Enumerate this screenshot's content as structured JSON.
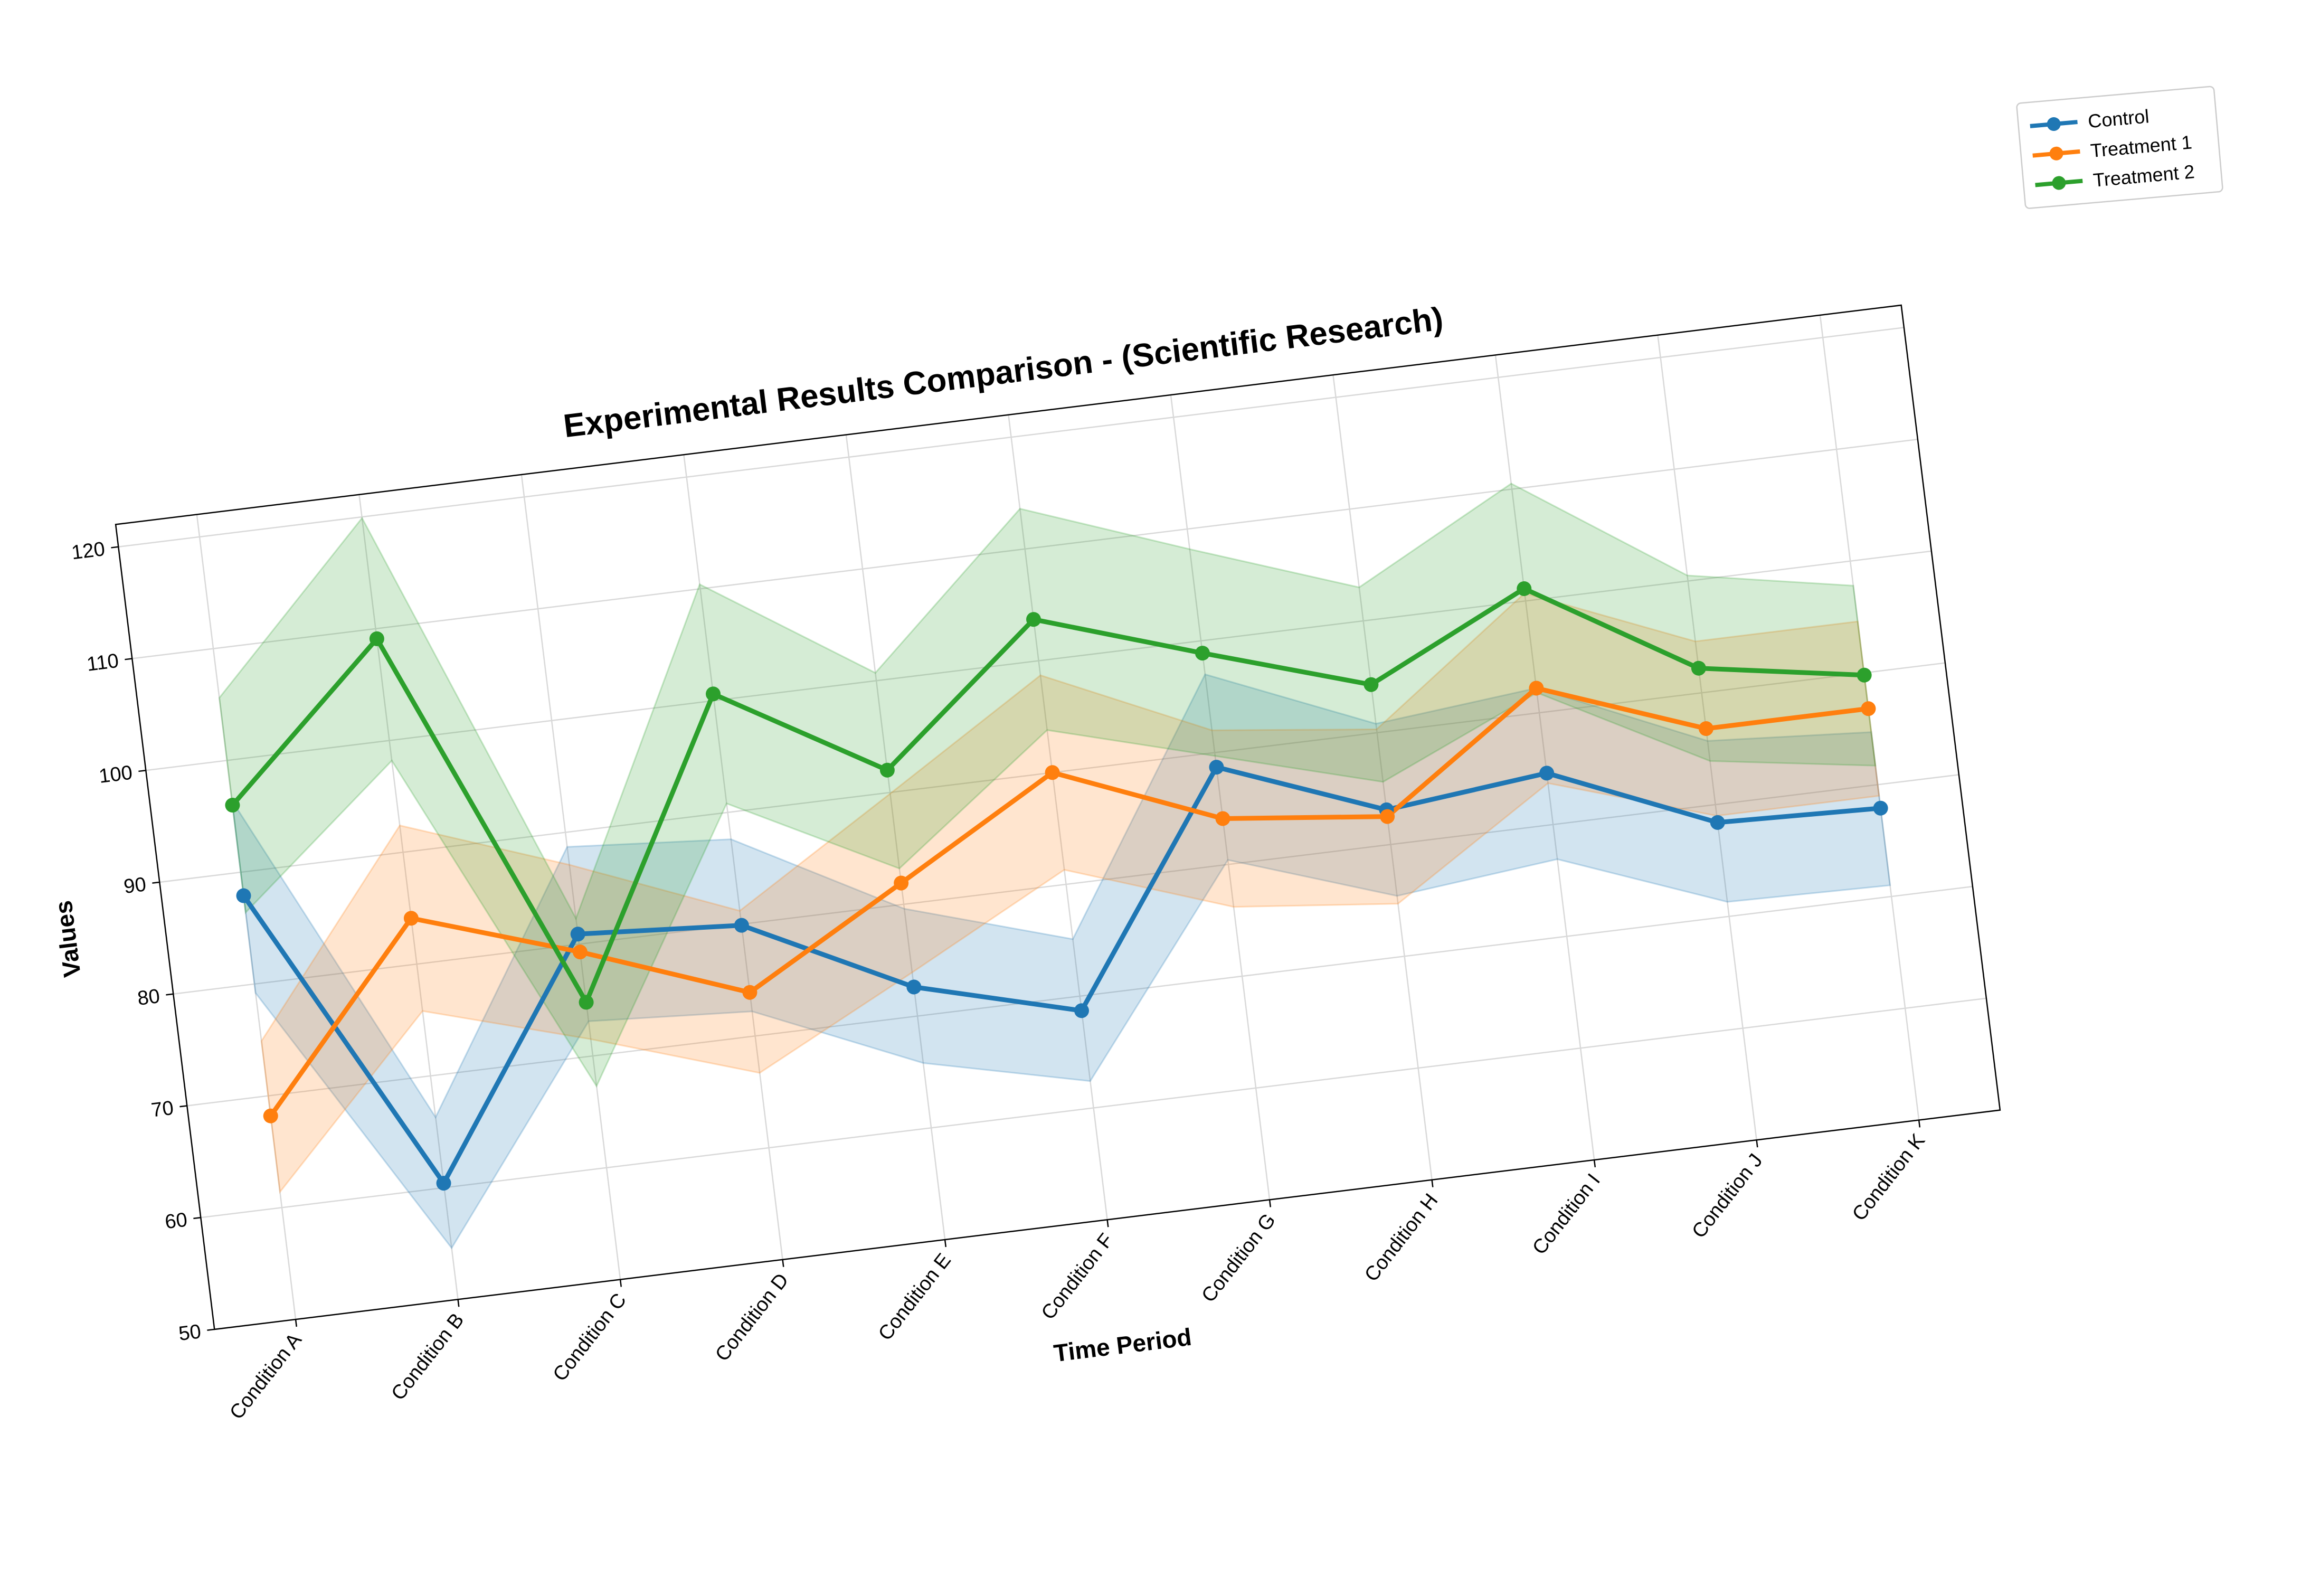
{
  "chart_data": {
    "type": "line",
    "title": "Experimental Results Comparison - (Scientific Research)",
    "xlabel": "Time Period",
    "ylabel": "Values",
    "categories": [
      "Condition A",
      "Condition B",
      "Condition C",
      "Condition D",
      "Condition E",
      "Condition F",
      "Condition G",
      "Condition H",
      "Condition I",
      "Condition J",
      "Condition K"
    ],
    "ylim": [
      50,
      122
    ],
    "yticks": [
      50,
      60,
      70,
      80,
      90,
      100,
      110,
      120
    ],
    "grid": true,
    "legend_position": "upper-right, outside plot",
    "rotation_degrees": -7,
    "series": [
      {
        "name": "Control",
        "color": "#1f77b4",
        "values": [
          87.9,
          60.4,
          80.9,
          79.9,
          72.6,
          68.7,
          88.7,
          83.1,
          84.6,
          78.4,
          77.9
        ],
        "band_upper": [
          96.4,
          66.3,
          88.7,
          87.6,
          79.6,
          75.1,
          97.0,
          90.8,
          92.2,
          85.7,
          84.7
        ],
        "band_lower": [
          79.2,
          54.6,
          73.1,
          72.2,
          65.8,
          62.4,
          80.4,
          75.4,
          76.9,
          71.3,
          71.0
        ]
      },
      {
        "name": "Treatment 1",
        "color": "#ff7f0e",
        "values": [
          68.2,
          84.1,
          79.3,
          73.9,
          81.9,
          90.0,
          84.1,
          82.5,
          92.2,
          86.8,
          86.8
        ],
        "band_upper": [
          74.9,
          92.4,
          87.1,
          81.2,
          89.9,
          98.7,
          92.0,
          90.3,
          100.7,
          94.6,
          94.6
        ],
        "band_lower": [
          61.4,
          75.8,
          71.5,
          66.7,
          73.9,
          81.3,
          76.2,
          74.7,
          83.7,
          79.0,
          79.0
        ]
      },
      {
        "name": "Treatment 2",
        "color": "#2ca02c",
        "values": [
          96.0,
          109.1,
          74.8,
          100.6,
          92.0,
          103.7,
          98.9,
          94.3,
          101.1,
          92.2,
          89.8
        ],
        "band_upper": [
          105.6,
          119.9,
          82.3,
          110.4,
          100.7,
          113.6,
          108.2,
          103.0,
          110.5,
          100.5,
          97.8
        ],
        "band_lower": [
          86.4,
          98.2,
          67.3,
          90.8,
          83.2,
          93.8,
          89.7,
          85.6,
          91.8,
          83.9,
          81.7
        ]
      }
    ]
  }
}
